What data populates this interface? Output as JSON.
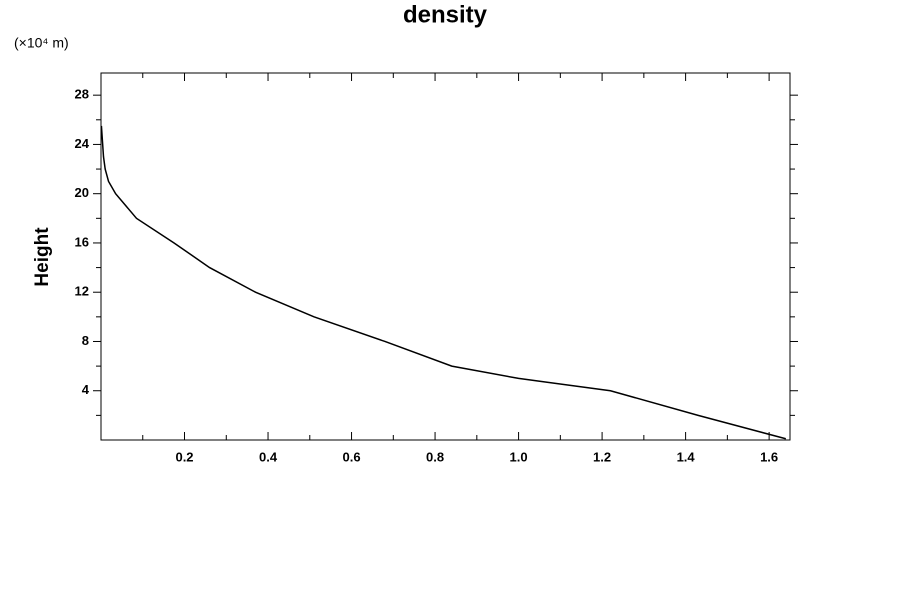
{
  "chart_data": {
    "type": "line",
    "title": "density",
    "y_label": "Height",
    "y_unit": "(×10⁴ m)",
    "x": [
      1.64,
      1.43,
      1.22,
      1.0,
      0.84,
      0.68,
      0.51,
      0.37,
      0.26,
      0.175,
      0.085,
      0.035,
      0.018,
      0.01,
      0.006,
      0.004,
      0.001
    ],
    "values": [
      0.1,
      2,
      4,
      5,
      6,
      8,
      10,
      12,
      14,
      16,
      18,
      20,
      21,
      22,
      23,
      24,
      25.5
    ],
    "color": "#000000",
    "xlim": [
      0,
      1.65
    ],
    "ylim": [
      0,
      29.8
    ],
    "xticks": [
      0.2,
      0.4,
      0.6,
      0.8,
      {
        "value": 1,
        "label": "1.0"
      },
      1.2,
      1.4,
      1.6
    ],
    "yticks": [
      4,
      8,
      12,
      16,
      20,
      24,
      28
    ],
    "xminorticks": [
      0.1,
      0.3,
      0.5,
      0.7,
      0.9,
      1.1,
      1.3,
      1.5
    ],
    "yminorticks": [
      2,
      6,
      10,
      14,
      18,
      22,
      26
    ],
    "grid": false
  }
}
